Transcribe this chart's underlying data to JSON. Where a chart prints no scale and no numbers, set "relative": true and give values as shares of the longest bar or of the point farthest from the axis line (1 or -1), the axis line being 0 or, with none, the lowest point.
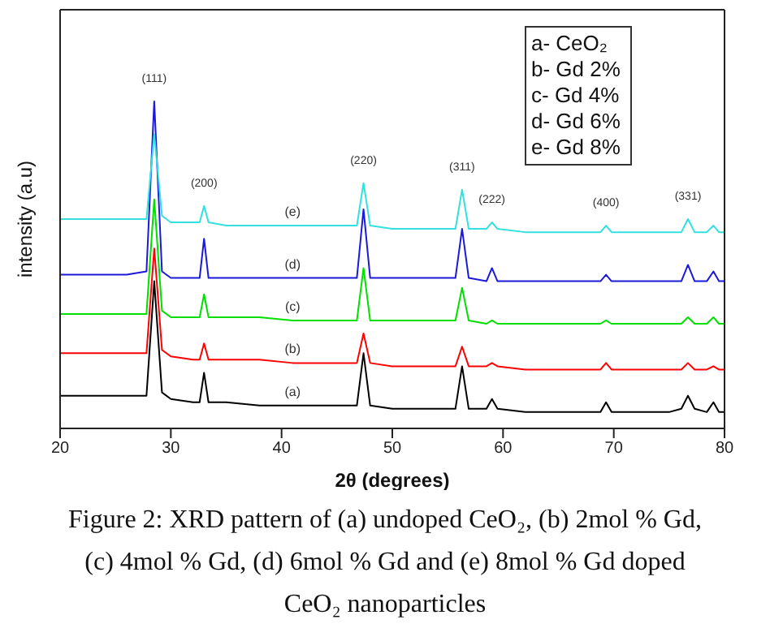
{
  "chart_data": {
    "type": "line",
    "relative": true,
    "xlabel": "2θ (degrees)",
    "ylabel": "intensity (a.u)",
    "xlim": [
      20,
      80
    ],
    "xticks": [
      20,
      30,
      40,
      50,
      60,
      70,
      80
    ],
    "tick_labels": "x",
    "marker": "none",
    "line_style": "solid",
    "x": [
      20,
      22,
      24,
      26,
      27.8,
      28.5,
      29.2,
      30,
      32,
      32.6,
      33,
      33.4,
      35,
      38,
      41,
      44,
      46.8,
      47.4,
      48,
      50,
      53,
      55.7,
      56.3,
      56.9,
      58.5,
      59,
      59.5,
      62,
      66,
      68.8,
      69.3,
      69.8,
      72,
      75,
      76.1,
      76.7,
      77.3,
      78.4,
      79,
      79.5,
      80
    ],
    "series": [
      {
        "name": "(a)",
        "color": "#000000",
        "values": [
          0.1,
          0.1,
          0.1,
          0.1,
          0.1,
          0.45,
          0.11,
          0.09,
          0.08,
          0.08,
          0.17,
          0.08,
          0.08,
          0.07,
          0.07,
          0.07,
          0.07,
          0.23,
          0.07,
          0.06,
          0.06,
          0.06,
          0.19,
          0.06,
          0.06,
          0.09,
          0.06,
          0.05,
          0.05,
          0.05,
          0.08,
          0.05,
          0.05,
          0.05,
          0.06,
          0.1,
          0.06,
          0.05,
          0.08,
          0.05,
          0.05
        ]
      },
      {
        "name": "(b)",
        "color": "#ff0000",
        "values": [
          0.23,
          0.23,
          0.23,
          0.23,
          0.23,
          0.55,
          0.24,
          0.22,
          0.21,
          0.21,
          0.26,
          0.21,
          0.21,
          0.21,
          0.2,
          0.2,
          0.2,
          0.29,
          0.2,
          0.19,
          0.19,
          0.19,
          0.25,
          0.19,
          0.19,
          0.2,
          0.19,
          0.18,
          0.18,
          0.18,
          0.2,
          0.18,
          0.18,
          0.18,
          0.18,
          0.2,
          0.18,
          0.18,
          0.19,
          0.18,
          0.18
        ]
      },
      {
        "name": "(c)",
        "color": "#00e000",
        "values": [
          0.35,
          0.35,
          0.35,
          0.35,
          0.35,
          0.7,
          0.36,
          0.34,
          0.34,
          0.34,
          0.41,
          0.34,
          0.34,
          0.34,
          0.33,
          0.33,
          0.33,
          0.49,
          0.33,
          0.33,
          0.33,
          0.33,
          0.43,
          0.33,
          0.32,
          0.33,
          0.32,
          0.32,
          0.32,
          0.32,
          0.33,
          0.32,
          0.32,
          0.32,
          0.32,
          0.34,
          0.32,
          0.32,
          0.34,
          0.32,
          0.32
        ]
      },
      {
        "name": "(d)",
        "color": "#1a1ad8",
        "values": [
          0.47,
          0.47,
          0.47,
          0.47,
          0.48,
          1.0,
          0.48,
          0.46,
          0.46,
          0.46,
          0.58,
          0.46,
          0.46,
          0.46,
          0.46,
          0.46,
          0.46,
          0.67,
          0.46,
          0.46,
          0.46,
          0.46,
          0.61,
          0.46,
          0.45,
          0.49,
          0.45,
          0.45,
          0.45,
          0.45,
          0.47,
          0.45,
          0.45,
          0.45,
          0.45,
          0.5,
          0.45,
          0.45,
          0.48,
          0.45,
          0.45
        ]
      },
      {
        "name": "(e)",
        "color": "#33e0e0",
        "values": [
          0.64,
          0.64,
          0.64,
          0.64,
          0.64,
          0.9,
          0.65,
          0.63,
          0.63,
          0.63,
          0.68,
          0.63,
          0.62,
          0.62,
          0.62,
          0.62,
          0.62,
          0.75,
          0.62,
          0.61,
          0.61,
          0.61,
          0.73,
          0.61,
          0.61,
          0.63,
          0.61,
          0.6,
          0.6,
          0.6,
          0.62,
          0.6,
          0.6,
          0.6,
          0.6,
          0.64,
          0.6,
          0.6,
          0.62,
          0.6,
          0.6
        ]
      }
    ],
    "annotations": [
      {
        "text": "(111)",
        "x": 28.5,
        "y": 1.0
      },
      {
        "text": "(200)",
        "x": 33,
        "y": 0.68
      },
      {
        "text": "(220)",
        "x": 47.4,
        "y": 0.75
      },
      {
        "text": "(311)",
        "x": 56.3,
        "y": 0.73
      },
      {
        "text": "(222)",
        "x": 59,
        "y": 0.63
      },
      {
        "text": "(400)",
        "x": 69.3,
        "y": 0.62
      },
      {
        "text": "(331)",
        "x": 76.7,
        "y": 0.64
      },
      "a- CeO₂",
      "b- Gd 2%",
      "c- Gd 4%",
      "d- Gd 6%",
      "e- Gd 8%",
      "Figure 2: XRD pattern of (a) undoped CeO₂, (b) 2mol % Gd, (c) 4mol % Gd, (d) 6mol % Gd and (e) 8mol % Gd doped CeO₂ nanoparticles"
    ]
  }
}
